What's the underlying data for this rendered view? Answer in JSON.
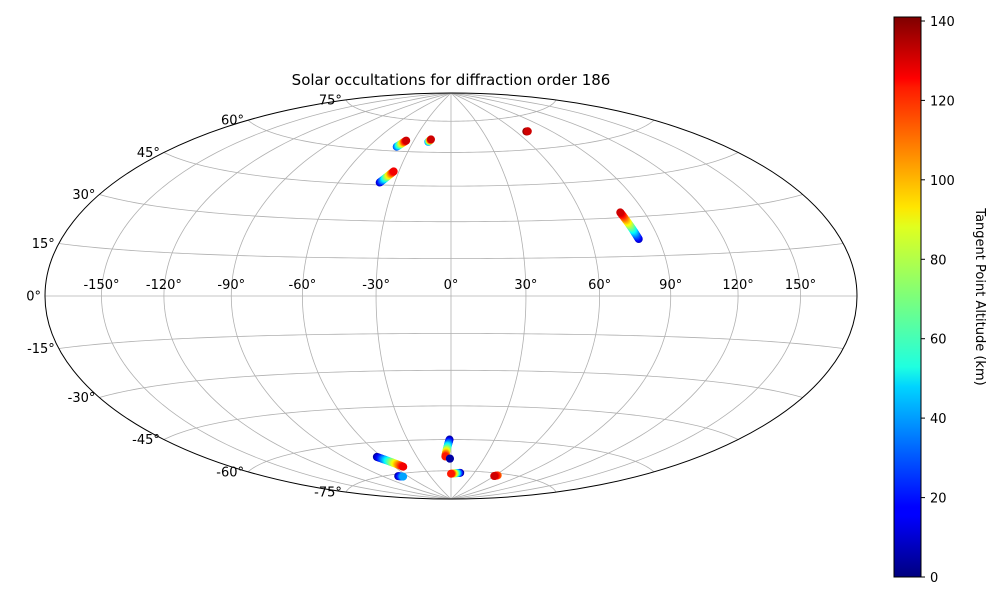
{
  "chart_data": {
    "type": "scatter",
    "projection": "hammer",
    "title": "Solar occultations for diffraction order 186",
    "grid": true,
    "xticks": [
      -150,
      -120,
      -90,
      -60,
      -30,
      0,
      30,
      60,
      90,
      120,
      150
    ],
    "yticks": [
      -75,
      -60,
      -45,
      -30,
      -15,
      0,
      15,
      30,
      45,
      60,
      75
    ],
    "xtick_labels": [
      "-150°",
      "-120°",
      "-90°",
      "-60°",
      "-30°",
      "0°",
      "30°",
      "60°",
      "90°",
      "120°",
      "150°"
    ],
    "ytick_labels": [
      "-75°",
      "-60°",
      "-45°",
      "-30°",
      "-15°",
      "0°",
      "15°",
      "30°",
      "45°",
      "60°",
      "75°"
    ],
    "colorbar": {
      "label": "Tangent Point Altitude (km)",
      "range": [
        0,
        141
      ],
      "colormap": "jet",
      "ticks": [
        0,
        20,
        40,
        60,
        80,
        100,
        120,
        140
      ],
      "tick_labels": [
        "0",
        "20",
        "40",
        "60",
        "80",
        "100",
        "120",
        "140"
      ]
    },
    "tracks": [
      {
        "lon_start": -40.0,
        "lat_start": 62.0,
        "lon_end": -36.0,
        "lat_end": 65.0,
        "alt_start": 30,
        "alt_end": 130
      },
      {
        "lon_start": -18.0,
        "lat_start": 64.8,
        "lon_end": -16.5,
        "lat_end": 66.0,
        "alt_start": 40,
        "alt_end": 130
      },
      {
        "lon_start": 69.0,
        "lat_start": 68.0,
        "lon_end": 70.5,
        "lat_end": 68.0,
        "alt_start": 140,
        "alt_end": 130
      },
      {
        "lon_start": -38.0,
        "lat_start": 46.0,
        "lon_end": -33.0,
        "lat_end": 51.0,
        "alt_start": 10,
        "alt_end": 125
      },
      {
        "lon_start": 81.0,
        "lat_start": 21.5,
        "lon_end": 78.5,
        "lat_end": 32.0,
        "alt_start": 10,
        "alt_end": 130
      },
      {
        "lon_start": -64.0,
        "lat_start": -66.5,
        "lon_end": -51.0,
        "lat_end": -72.0,
        "alt_start": 5,
        "alt_end": 125
      },
      {
        "lon_start": -72.0,
        "lat_start": -76.0,
        "lon_end": -67.0,
        "lat_end": -76.5,
        "alt_start": 5,
        "alt_end": 40
      },
      {
        "lon_start": -1.0,
        "lat_start": -60.0,
        "lon_end": -5.0,
        "lat_end": -68.0,
        "alt_start": 5,
        "alt_end": 120
      },
      {
        "lon_start": -1.0,
        "lat_start": -69.0,
        "lon_end": -1.0,
        "lat_end": -69.0,
        "alt_start": 5,
        "alt_end": 5
      },
      {
        "lon_start": 12.0,
        "lat_start": -76.0,
        "lon_end": 0.0,
        "lat_end": -76.5,
        "alt_start": 5,
        "alt_end": 120
      },
      {
        "lon_start": 63.0,
        "lat_start": -76.0,
        "lon_end": 60.0,
        "lat_end": -76.5,
        "alt_start": 110,
        "alt_end": 130
      }
    ]
  }
}
